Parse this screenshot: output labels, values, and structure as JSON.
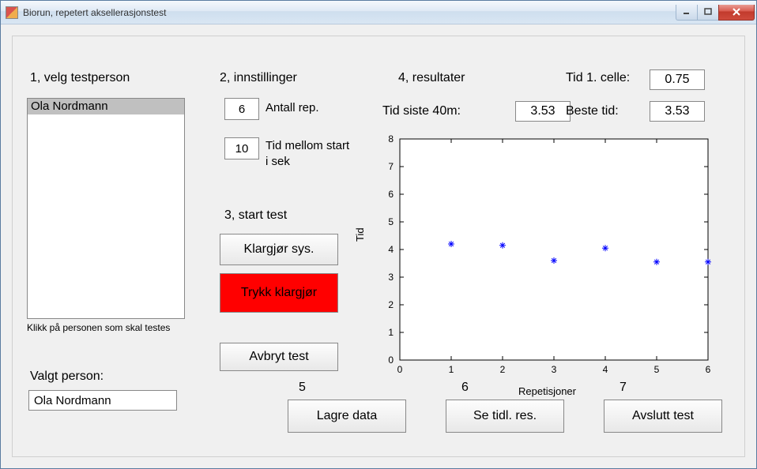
{
  "window": {
    "title": "Biorun, repetert aksellerasjonstest"
  },
  "section1": {
    "heading": "1, velg testperson",
    "list_items": [
      "Ola Nordmann"
    ],
    "selected_index": 0,
    "help": "Klikk på personen som skal testes",
    "valgt_label": "Valgt person:",
    "valgt_value": "Ola Nordmann"
  },
  "section2": {
    "heading": "2, innstillinger",
    "antall_rep_value": "6",
    "antall_rep_label": "Antall rep.",
    "tid_mellom_value": "10",
    "tid_mellom_label_line1": "Tid mellom start",
    "tid_mellom_label_line2": "i sek"
  },
  "section3": {
    "heading": "3, start test",
    "klargjor_label": "Klargjør sys.",
    "trykk_label": "Trykk klargjør",
    "avbryt_label": "Avbryt test"
  },
  "section4": {
    "heading": "4, resultater",
    "tid1_label": "Tid 1. celle:",
    "tid1_value": "0.75",
    "siste40_label": "Tid siste 40m:",
    "siste40_value": "3.53",
    "beste_label": "Beste tid:",
    "beste_value": "3.53"
  },
  "chart": {
    "type": "scatter",
    "xlabel": "Repetisjoner",
    "ylabel": "Tid",
    "xlim": [
      0,
      6
    ],
    "ylim": [
      0,
      8
    ],
    "xtick_step": 1,
    "ytick_step": 1,
    "points_x": [
      1,
      2,
      3,
      4,
      5,
      6
    ],
    "points_y": [
      4.2,
      4.15,
      3.6,
      4.05,
      3.55,
      3.55
    ],
    "marker": "*",
    "marker_color": "#0000ff",
    "axis_color": "#000000",
    "background": "#ffffff",
    "tick_fontsize": 12
  },
  "bottom": {
    "n5": "5",
    "n6": "6",
    "n7": "7",
    "lagre_label": "Lagre data",
    "se_tidl_label": "Se tidl. res.",
    "avslutt_label": "Avslutt test"
  }
}
